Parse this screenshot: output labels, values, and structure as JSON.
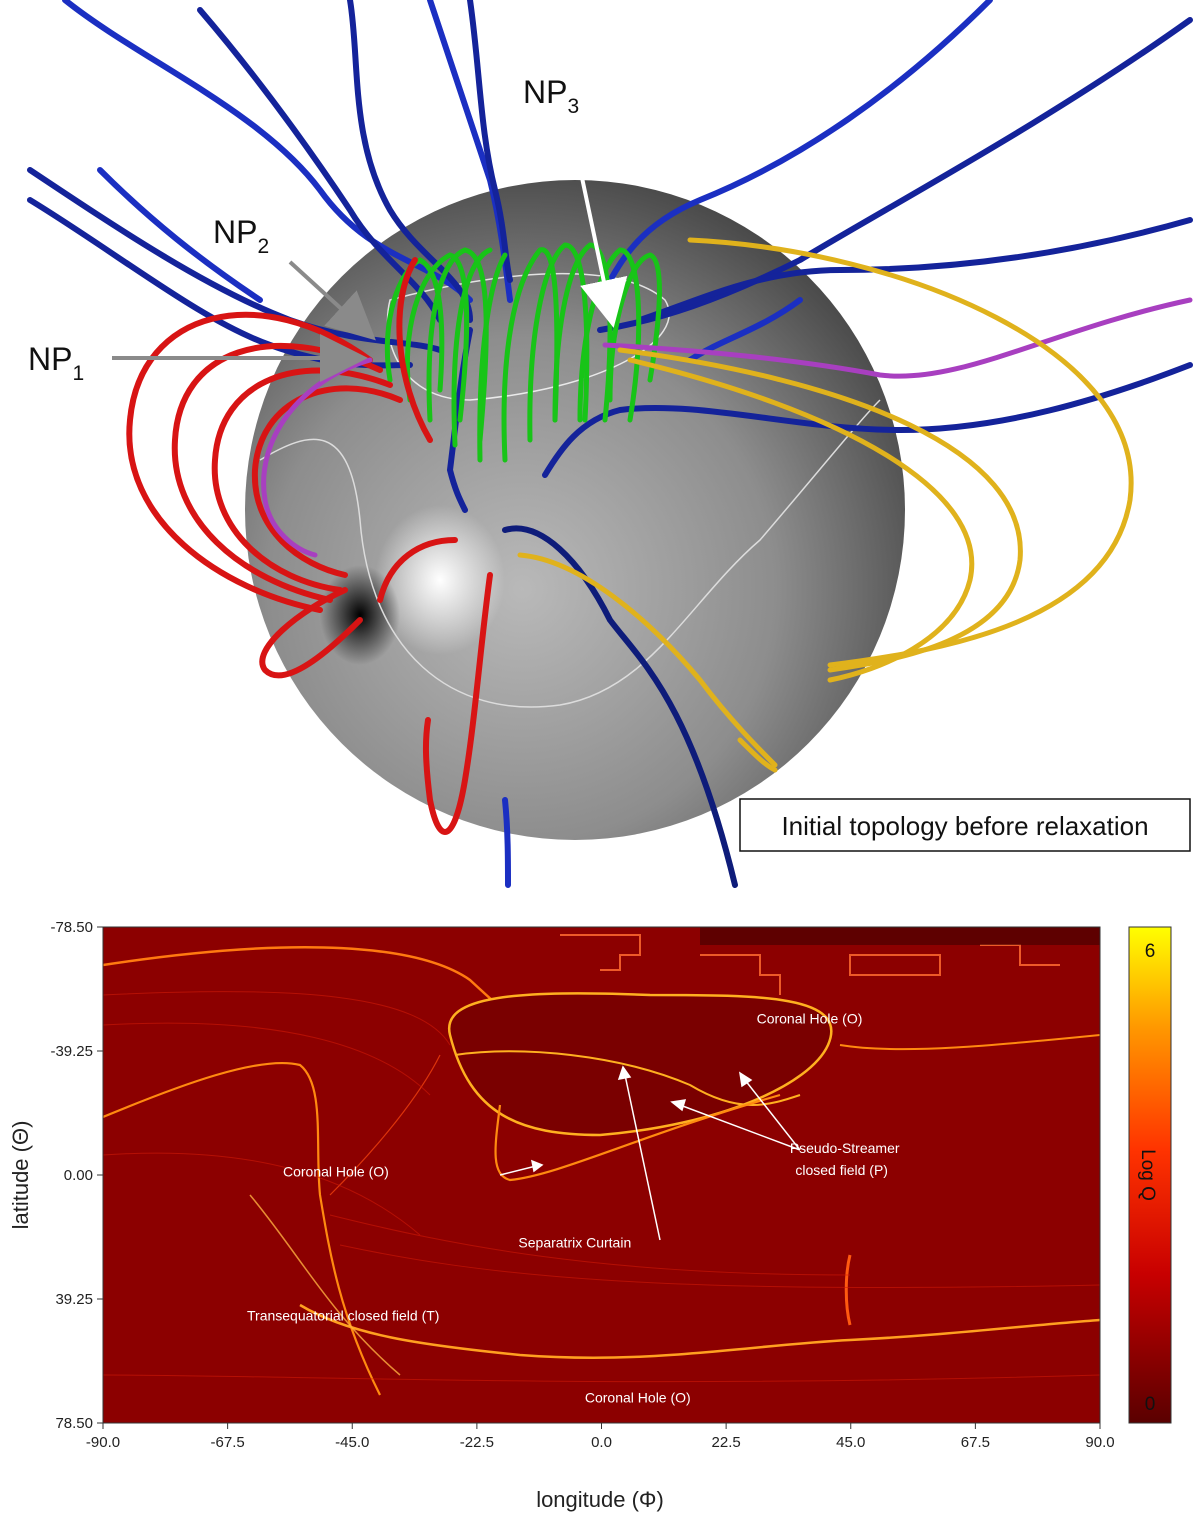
{
  "top_panel": {
    "annotations": [
      {
        "base": "NP",
        "sub": "1"
      },
      {
        "base": "NP",
        "sub": "2"
      },
      {
        "base": "NP",
        "sub": "3"
      }
    ],
    "caption": "Initial topology before relaxation",
    "line_colors": {
      "open_field": "#0a1f9a",
      "pseudo_streamer": "#18c418",
      "transequatorial": "#e0b21c",
      "side_loops": "#d81414",
      "separatrix_line": "#a83fc0"
    }
  },
  "chart_data": {
    "type": "heatmap",
    "xlabel": "longitude (Φ)",
    "ylabel": "latitude (Θ)",
    "x_ticks": [
      "-90.0",
      "-67.5",
      "-45.0",
      "-22.5",
      "0.0",
      "22.5",
      "45.0",
      "67.5",
      "90.0"
    ],
    "y_ticks": [
      "-78.50",
      "-39.25",
      "0.00",
      "39.25",
      "78.50"
    ],
    "xlim": [
      -90.0,
      90.0
    ],
    "ylim": [
      -78.5,
      78.5
    ],
    "colorbar": {
      "label": "Log Q",
      "min_label": "0",
      "max_label": "6",
      "range": [
        0,
        6
      ],
      "colors": [
        "#5a0000",
        "#c80000",
        "#ff3300",
        "#ff9900",
        "#ffff00"
      ]
    },
    "annotations": [
      {
        "text": "Coronal Hole (O)",
        "x": 28.0,
        "y": -48.0
      },
      {
        "text": "Coronal Hole (O)",
        "x": -57.5,
        "y": 0.5
      },
      {
        "text": "Pseudo-Streamer",
        "x": 34.0,
        "y": -7.0
      },
      {
        "text": "closed field (P)",
        "x": 35.0,
        "y": 0.0
      },
      {
        "text": "Separatrix Curtain",
        "x": -15.0,
        "y": 23.0
      },
      {
        "text": "Transequatorial closed field (T)",
        "x": -64.0,
        "y": 46.0
      },
      {
        "text": "Coronal Hole (O)",
        "x": -3.0,
        "y": 72.0
      }
    ]
  }
}
